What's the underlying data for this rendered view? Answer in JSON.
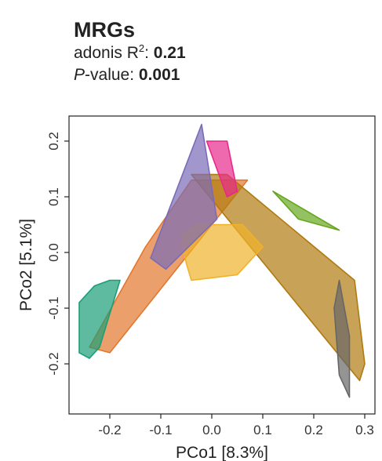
{
  "header": {
    "title": "MRGs",
    "stat1_label": "adonis R",
    "stat1_sup": "2",
    "stat1_sep": ": ",
    "stat1_value": "0.21",
    "stat2_label_italic": "P",
    "stat2_label_rest": "-value: ",
    "stat2_value": "0.001"
  },
  "chart_data": {
    "type": "scatter",
    "xlabel": "PCo1 [8.3%]",
    "ylabel": "PCo2 [5.1%]",
    "xlim": [
      -0.28,
      0.32
    ],
    "ylim": [
      -0.29,
      0.245
    ],
    "xticks": [
      -0.2,
      -0.1,
      0.0,
      0.1,
      0.2,
      0.3
    ],
    "xtick_labels": [
      "-0.2",
      "-0.1",
      "0.0",
      "0.1",
      "0.2",
      "0.3"
    ],
    "yticks": [
      -0.2,
      -0.1,
      0.0,
      0.1,
      0.2
    ],
    "ytick_labels": [
      "-0.2",
      "-0.1",
      "0.0",
      "0.1",
      "0.2"
    ],
    "grid": false,
    "series": [
      {
        "color": "#E2772E",
        "points": [
          [
            -0.24,
            -0.17
          ],
          [
            -0.2,
            -0.18
          ],
          [
            -0.02,
            0.05
          ],
          [
            0.07,
            0.13
          ],
          [
            -0.04,
            0.13
          ],
          [
            -0.13,
            0.01
          ]
        ]
      },
      {
        "color": "#B07A10",
        "points": [
          [
            -0.04,
            0.14
          ],
          [
            0.03,
            0.14
          ],
          [
            0.29,
            -0.23
          ],
          [
            0.3,
            -0.2
          ],
          [
            0.28,
            -0.05
          ],
          [
            0.12,
            0.06
          ]
        ]
      },
      {
        "color": "#F0B22A",
        "points": [
          [
            -0.06,
            0.03
          ],
          [
            -0.03,
            0.05
          ],
          [
            0.04,
            0.04
          ],
          [
            0.09,
            0.0
          ],
          [
            0.06,
            -0.02
          ],
          [
            0.05,
            -0.04
          ],
          [
            0.1,
            0.01
          ],
          [
            0.06,
            0.05
          ],
          [
            -0.04,
            -0.05
          ],
          [
            -0.05,
            -0.02
          ]
        ]
      },
      {
        "color": "#7A6BB8",
        "points": [
          [
            -0.12,
            -0.01
          ],
          [
            -0.09,
            -0.03
          ],
          [
            0.01,
            0.06
          ],
          [
            -0.02,
            0.23
          ],
          [
            -0.06,
            0.1
          ]
        ]
      },
      {
        "color": "#E7298A",
        "points": [
          [
            -0.01,
            0.2
          ],
          [
            0.03,
            0.2
          ],
          [
            0.05,
            0.11
          ],
          [
            0.03,
            0.1
          ]
        ]
      },
      {
        "color": "#66A61E",
        "points": [
          [
            0.12,
            0.11
          ],
          [
            0.17,
            0.06
          ],
          [
            0.25,
            0.04
          ],
          [
            0.17,
            0.07
          ]
        ]
      },
      {
        "color": "#1B9E77",
        "points": [
          [
            -0.26,
            -0.09
          ],
          [
            -0.23,
            -0.06
          ],
          [
            -0.2,
            -0.05
          ],
          [
            -0.18,
            -0.05
          ],
          [
            -0.22,
            -0.17
          ],
          [
            -0.24,
            -0.19
          ],
          [
            -0.26,
            -0.18
          ]
        ]
      },
      {
        "color": "#666666",
        "points": [
          [
            0.25,
            -0.05
          ],
          [
            0.27,
            -0.15
          ],
          [
            0.27,
            -0.26
          ],
          [
            0.25,
            -0.22
          ],
          [
            0.24,
            -0.1
          ]
        ]
      }
    ]
  }
}
